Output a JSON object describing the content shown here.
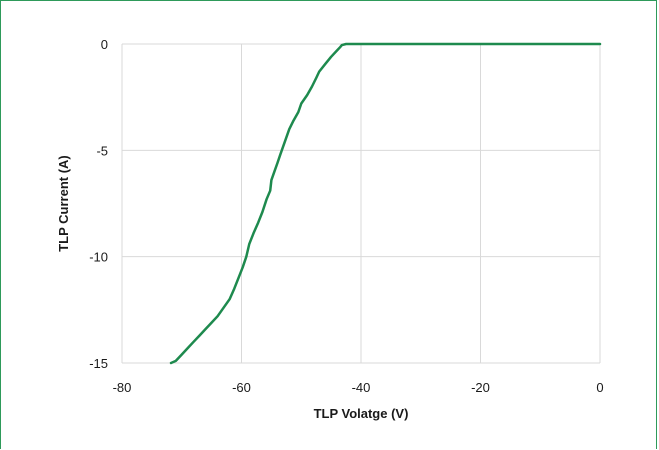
{
  "chart_data": {
    "type": "line",
    "title": "",
    "xlabel": "TLP Volatge (V)",
    "ylabel": "TLP Current (A)",
    "xlim": [
      -80,
      0
    ],
    "ylim": [
      -15,
      0
    ],
    "xticks": [
      "-80",
      "-60",
      "-40",
      "-20",
      "0"
    ],
    "yticks": [
      "0",
      "-5",
      "-10",
      "-15"
    ],
    "grid": true,
    "legend": "none",
    "line_color": "#1e8a4e",
    "series": [
      {
        "x": [
          0,
          -20,
          -40,
          -42.5,
          -43.2,
          -43.5,
          -44,
          -45,
          -46,
          -47,
          -47.5,
          -48.2,
          -49,
          -50,
          -50.5,
          -51.3,
          -52,
          -52.5,
          -53,
          -53.5,
          -54,
          -54.5,
          -55,
          -55.2,
          -55.8,
          -56.5,
          -57.2,
          -58,
          -58.7,
          -59.2,
          -59.8,
          -60.5,
          -61.2,
          -62,
          -63,
          -64,
          -65,
          -66,
          -67,
          -68,
          -69,
          -70,
          -71,
          -71.8
        ],
        "y": [
          0,
          0,
          0,
          0,
          -0.05,
          -0.15,
          -0.3,
          -0.6,
          -0.95,
          -1.3,
          -1.6,
          -2.0,
          -2.4,
          -2.8,
          -3.2,
          -3.6,
          -4.0,
          -4.4,
          -4.8,
          -5.2,
          -5.6,
          -6.0,
          -6.4,
          -6.9,
          -7.3,
          -7.9,
          -8.4,
          -8.9,
          -9.4,
          -10.0,
          -10.5,
          -11.0,
          -11.5,
          -12.0,
          -12.4,
          -12.8,
          -13.1,
          -13.4,
          -13.7,
          -14.0,
          -14.3,
          -14.6,
          -14.9,
          -15.0
        ]
      }
    ]
  }
}
